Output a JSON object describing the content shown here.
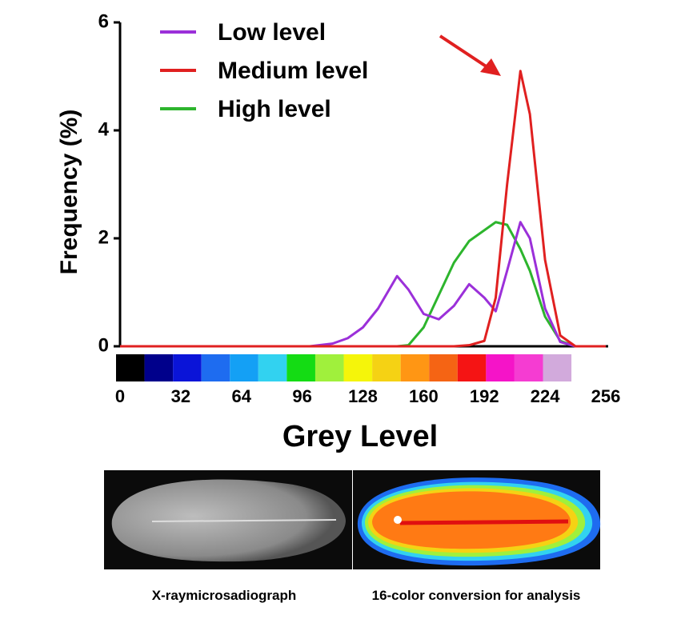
{
  "chart_data": {
    "type": "line",
    "y_label": "Frequency (%)",
    "x_label": "Grey Level",
    "x": [
      0,
      100,
      112,
      120,
      128,
      136,
      146,
      152,
      160,
      168,
      176,
      184,
      192,
      198,
      204,
      211,
      216,
      224,
      232,
      240,
      256
    ],
    "series": [
      {
        "name": "Low level",
        "color": "#9b30d9",
        "values": [
          0,
          0,
          0.05,
          0.15,
          0.35,
          0.7,
          1.3,
          1.05,
          0.6,
          0.5,
          0.75,
          1.15,
          0.9,
          0.65,
          1.4,
          2.3,
          2.0,
          0.7,
          0.08,
          0,
          0
        ]
      },
      {
        "name": "Medium level",
        "color": "#e02020",
        "values": [
          0,
          0,
          0,
          0,
          0,
          0,
          0,
          0,
          0,
          0,
          0,
          0.02,
          0.1,
          0.9,
          3.0,
          5.1,
          4.3,
          1.6,
          0.2,
          0,
          0
        ]
      },
      {
        "name": "High level",
        "color": "#2db52d",
        "values": [
          0,
          0,
          0,
          0,
          0,
          0,
          0,
          0.02,
          0.35,
          0.95,
          1.55,
          1.95,
          2.15,
          2.3,
          2.25,
          1.8,
          1.4,
          0.55,
          0.1,
          0,
          0
        ]
      }
    ],
    "xlim": [
      0,
      256
    ],
    "xticks": [
      0,
      32,
      64,
      96,
      128,
      160,
      192,
      224,
      256
    ],
    "ylim": [
      0,
      6
    ],
    "yticks": [
      0,
      2,
      4,
      6
    ],
    "legend": "top-left",
    "colorbar": [
      "#000000",
      "#00008b",
      "#0a14d8",
      "#1e6cf0",
      "#14a0f5",
      "#32d2f0",
      "#14dc14",
      "#a0f03c",
      "#f5f50a",
      "#f5d214",
      "#ff9614",
      "#f56414",
      "#f51414",
      "#f514c8",
      "#f53cd2",
      "#d2aadc"
    ]
  },
  "figure_captions": [
    "X-raymicrosadiograph",
    "16-color conversion for analysis"
  ]
}
